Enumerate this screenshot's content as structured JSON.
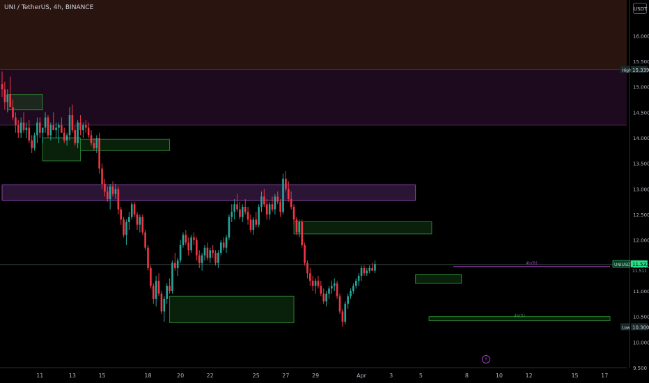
{
  "title": "UNI / TetherUS, 4h, BINANCE",
  "currency_button": "USDT",
  "colors": {
    "background": "#000000",
    "up": "#26a69a",
    "down": "#f23645",
    "premium_zone": "#2a1410",
    "discount_zone": "#1e0a1e",
    "purple_band": "#8e44ad",
    "green_zone": "#1b5e20",
    "axis_text": "#b2b5be",
    "price_label": "#26e08a"
  },
  "icons": [
    "bolt-icon"
  ],
  "chart_data": {
    "type": "candlestick",
    "ylim": [
      9.5,
      16.7
    ],
    "y_ticks": [
      "9.500",
      "10.000",
      "10.500",
      "11.000",
      "11.500",
      "12.000",
      "12.500",
      "13.000",
      "13.500",
      "14.000",
      "14.500",
      "15.000",
      "15.500",
      "16.000"
    ],
    "x_ticks": [
      {
        "label": "11",
        "i": 14
      },
      {
        "label": "13",
        "i": 26
      },
      {
        "label": "15",
        "i": 37
      },
      {
        "label": "18",
        "i": 54
      },
      {
        "label": "20",
        "i": 66
      },
      {
        "label": "22",
        "i": 77
      },
      {
        "label": "25",
        "i": 94
      },
      {
        "label": "27",
        "i": 105
      },
      {
        "label": "29",
        "i": 116
      },
      {
        "label": "Apr",
        "i": 133
      },
      {
        "label": "3",
        "i": 144
      },
      {
        "label": "5",
        "i": 155
      },
      {
        "label": "8",
        "i": 172
      },
      {
        "label": "10",
        "i": 184
      },
      {
        "label": "12",
        "i": 195
      },
      {
        "label": "15",
        "i": 212
      },
      {
        "label": "17",
        "i": 223
      }
    ],
    "high_label": "High",
    "high_value": "15.339",
    "low_label": "Low",
    "low_value": "10.300",
    "last_label": "UNIUSDT",
    "last_value": "11.533",
    "last_value_secondary": "11.511",
    "level_labels": [
      "4h(R)",
      "4h(S)"
    ],
    "levels": [
      {
        "type": "premium",
        "from": 15.339,
        "to": 16.7
      },
      {
        "type": "resistance",
        "from": 14.25,
        "to": 15.339
      },
      {
        "type": "purple_band",
        "from": 12.78,
        "to": 13.08,
        "i_start": 0,
        "i_end": 153
      },
      {
        "type": "current",
        "value": 11.52
      }
    ],
    "zones": [
      {
        "i_start": 2,
        "i_end": 15,
        "from": 14.55,
        "to": 14.85
      },
      {
        "i_start": 15,
        "i_end": 29,
        "from": 13.55,
        "to": 14.0
      },
      {
        "i_start": 29,
        "i_end": 62,
        "from": 13.75,
        "to": 13.97
      },
      {
        "i_start": 62,
        "i_end": 108,
        "from": 10.38,
        "to": 10.9
      },
      {
        "i_start": 108,
        "i_end": 159,
        "from": 12.12,
        "to": 12.36
      },
      {
        "i_start": 153,
        "i_end": 170,
        "from": 11.15,
        "to": 11.32
      },
      {
        "i_start": 158,
        "i_end": 225,
        "from": 10.42,
        "to": 10.5
      }
    ],
    "r_level": {
      "i_start": 167,
      "i_end": 225,
      "value": 11.48
    },
    "ohlc": [
      [
        15.05,
        15.3,
        14.8,
        14.95
      ],
      [
        14.95,
        15.1,
        14.55,
        14.7
      ],
      [
        14.7,
        14.95,
        14.5,
        14.85
      ],
      [
        14.85,
        15.2,
        14.6,
        14.6
      ],
      [
        14.6,
        14.75,
        14.35,
        14.4
      ],
      [
        14.4,
        14.5,
        14.1,
        14.25
      ],
      [
        14.25,
        14.35,
        14.0,
        14.1
      ],
      [
        14.1,
        14.4,
        14.0,
        14.3
      ],
      [
        14.3,
        14.5,
        14.1,
        14.15
      ],
      [
        14.15,
        14.3,
        14.0,
        14.2
      ],
      [
        14.2,
        14.35,
        13.9,
        13.95
      ],
      [
        13.95,
        14.05,
        13.7,
        13.8
      ],
      [
        13.8,
        14.1,
        13.75,
        14.05
      ],
      [
        14.05,
        14.4,
        13.9,
        14.3
      ],
      [
        14.3,
        14.4,
        14.0,
        14.1
      ],
      [
        14.1,
        14.2,
        13.9,
        14.2
      ],
      [
        14.2,
        14.5,
        14.1,
        14.4
      ],
      [
        14.4,
        14.45,
        14.0,
        14.05
      ],
      [
        14.05,
        14.3,
        13.95,
        14.25
      ],
      [
        14.25,
        14.5,
        14.15,
        14.15
      ],
      [
        14.15,
        14.3,
        14.0,
        14.2
      ],
      [
        14.2,
        14.3,
        13.9,
        14.25
      ],
      [
        14.25,
        14.4,
        14.1,
        14.1
      ],
      [
        14.1,
        14.2,
        13.9,
        13.95
      ],
      [
        13.95,
        14.1,
        13.85,
        14.05
      ],
      [
        14.05,
        14.6,
        13.95,
        14.45
      ],
      [
        14.45,
        14.65,
        14.1,
        14.15
      ],
      [
        14.15,
        14.25,
        13.85,
        13.9
      ],
      [
        13.9,
        14.35,
        13.8,
        14.3
      ],
      [
        14.3,
        14.45,
        14.05,
        14.15
      ],
      [
        14.15,
        14.3,
        14.0,
        14.25
      ],
      [
        14.25,
        14.35,
        14.1,
        14.2
      ],
      [
        14.2,
        14.3,
        14.0,
        14.05
      ],
      [
        14.05,
        14.15,
        13.85,
        13.9
      ],
      [
        13.9,
        14.0,
        13.75,
        13.8
      ],
      [
        13.8,
        14.05,
        13.7,
        14.0
      ],
      [
        14.0,
        14.1,
        13.3,
        13.4
      ],
      [
        13.4,
        13.5,
        13.0,
        13.1
      ],
      [
        13.1,
        13.2,
        12.85,
        12.95
      ],
      [
        12.95,
        13.05,
        12.75,
        12.8
      ],
      [
        12.8,
        13.1,
        12.6,
        13.05
      ],
      [
        13.05,
        13.15,
        12.85,
        12.9
      ],
      [
        12.9,
        13.1,
        12.8,
        13.0
      ],
      [
        13.0,
        13.05,
        12.5,
        12.6
      ],
      [
        12.6,
        12.65,
        12.3,
        12.4
      ],
      [
        12.4,
        12.45,
        12.05,
        12.1
      ],
      [
        12.1,
        12.4,
        11.9,
        12.35
      ],
      [
        12.35,
        12.55,
        12.2,
        12.45
      ],
      [
        12.45,
        12.75,
        12.4,
        12.7
      ],
      [
        12.7,
        12.75,
        12.45,
        12.5
      ],
      [
        12.5,
        12.55,
        12.2,
        12.3
      ],
      [
        12.3,
        12.5,
        12.15,
        12.45
      ],
      [
        12.45,
        12.5,
        12.1,
        12.15
      ],
      [
        12.15,
        12.2,
        11.8,
        11.85
      ],
      [
        11.85,
        11.9,
        11.4,
        11.45
      ],
      [
        11.45,
        11.5,
        11.05,
        11.1
      ],
      [
        11.1,
        11.15,
        10.75,
        10.85
      ],
      [
        10.85,
        11.3,
        10.7,
        11.2
      ],
      [
        11.2,
        11.35,
        10.9,
        10.95
      ],
      [
        10.95,
        11.0,
        10.55,
        10.6
      ],
      [
        10.6,
        10.9,
        10.4,
        10.85
      ],
      [
        10.85,
        11.15,
        10.75,
        11.1
      ],
      [
        11.1,
        11.25,
        10.95,
        11.0
      ],
      [
        11.0,
        11.6,
        10.95,
        11.55
      ],
      [
        11.55,
        11.75,
        11.4,
        11.45
      ],
      [
        11.45,
        11.65,
        11.3,
        11.6
      ],
      [
        11.6,
        12.0,
        11.55,
        11.9
      ],
      [
        11.9,
        12.15,
        11.85,
        12.1
      ],
      [
        12.1,
        12.2,
        11.9,
        11.95
      ],
      [
        11.95,
        12.05,
        11.7,
        11.8
      ],
      [
        11.8,
        12.1,
        11.75,
        12.05
      ],
      [
        12.05,
        12.15,
        11.9,
        12.0
      ],
      [
        12.0,
        12.05,
        11.6,
        11.7
      ],
      [
        11.7,
        11.8,
        11.45,
        11.55
      ],
      [
        11.55,
        11.75,
        11.4,
        11.7
      ],
      [
        11.7,
        11.9,
        11.6,
        11.85
      ],
      [
        11.85,
        11.95,
        11.6,
        11.65
      ],
      [
        11.65,
        11.85,
        11.55,
        11.8
      ],
      [
        11.8,
        11.9,
        11.65,
        11.75
      ],
      [
        11.75,
        11.8,
        11.5,
        11.55
      ],
      [
        11.55,
        11.8,
        11.45,
        11.75
      ],
      [
        11.75,
        12.0,
        11.7,
        11.95
      ],
      [
        11.95,
        12.05,
        11.8,
        11.85
      ],
      [
        11.85,
        12.1,
        11.75,
        12.05
      ],
      [
        12.05,
        12.5,
        12.0,
        12.45
      ],
      [
        12.45,
        12.7,
        12.35,
        12.55
      ],
      [
        12.55,
        12.8,
        12.4,
        12.7
      ],
      [
        12.7,
        12.9,
        12.55,
        12.6
      ],
      [
        12.6,
        12.75,
        12.4,
        12.45
      ],
      [
        12.45,
        12.7,
        12.35,
        12.65
      ],
      [
        12.65,
        12.8,
        12.5,
        12.55
      ],
      [
        12.55,
        12.65,
        12.3,
        12.4
      ],
      [
        12.4,
        12.5,
        12.15,
        12.2
      ],
      [
        12.2,
        12.45,
        12.1,
        12.4
      ],
      [
        12.4,
        12.55,
        12.25,
        12.3
      ],
      [
        12.3,
        12.7,
        12.25,
        12.65
      ],
      [
        12.65,
        12.95,
        12.55,
        12.85
      ],
      [
        12.85,
        13.0,
        12.65,
        12.7
      ],
      [
        12.7,
        12.8,
        12.4,
        12.5
      ],
      [
        12.5,
        12.75,
        12.4,
        12.7
      ],
      [
        12.7,
        12.85,
        12.55,
        12.6
      ],
      [
        12.6,
        12.9,
        12.5,
        12.85
      ],
      [
        12.85,
        12.95,
        12.7,
        12.75
      ],
      [
        12.75,
        12.8,
        12.45,
        12.55
      ],
      [
        12.55,
        13.3,
        12.5,
        13.2
      ],
      [
        13.2,
        13.35,
        12.95,
        13.0
      ],
      [
        13.0,
        13.15,
        12.75,
        12.8
      ],
      [
        12.8,
        12.95,
        12.6,
        12.65
      ],
      [
        12.65,
        12.7,
        12.3,
        12.4
      ],
      [
        12.4,
        12.45,
        12.1,
        12.15
      ],
      [
        12.15,
        12.4,
        12.05,
        12.35
      ],
      [
        12.35,
        12.4,
        11.85,
        11.9
      ],
      [
        11.9,
        11.95,
        11.5,
        11.55
      ],
      [
        11.55,
        11.6,
        11.25,
        11.35
      ],
      [
        11.35,
        11.45,
        11.1,
        11.2
      ],
      [
        11.2,
        11.3,
        11.0,
        11.1
      ],
      [
        11.1,
        11.25,
        10.95,
        11.2
      ],
      [
        11.2,
        11.3,
        11.05,
        11.1
      ],
      [
        11.1,
        11.2,
        10.9,
        10.95
      ],
      [
        10.95,
        11.05,
        10.75,
        10.8
      ],
      [
        10.8,
        11.0,
        10.7,
        10.95
      ],
      [
        10.95,
        11.1,
        10.85,
        11.05
      ],
      [
        11.05,
        11.2,
        10.95,
        11.1
      ],
      [
        11.1,
        11.25,
        11.0,
        11.15
      ],
      [
        11.15,
        11.2,
        10.85,
        10.9
      ],
      [
        10.9,
        10.95,
        10.55,
        10.6
      ],
      [
        10.6,
        10.65,
        10.3,
        10.4
      ],
      [
        10.4,
        10.8,
        10.35,
        10.75
      ],
      [
        10.75,
        10.95,
        10.65,
        10.9
      ],
      [
        10.9,
        11.05,
        10.85,
        11.0
      ],
      [
        11.0,
        11.15,
        10.95,
        11.1
      ],
      [
        11.1,
        11.25,
        11.05,
        11.2
      ],
      [
        11.2,
        11.35,
        11.1,
        11.3
      ],
      [
        11.3,
        11.5,
        11.2,
        11.45
      ],
      [
        11.45,
        11.5,
        11.3,
        11.35
      ],
      [
        11.35,
        11.45,
        11.3,
        11.4
      ],
      [
        11.4,
        11.5,
        11.35,
        11.45
      ],
      [
        11.45,
        11.55,
        11.4,
        11.4
      ],
      [
        11.4,
        11.6,
        11.35,
        11.53
      ]
    ]
  }
}
